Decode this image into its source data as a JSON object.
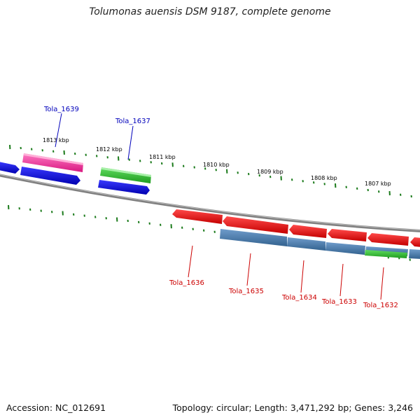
{
  "title": "Tolumonas auensis DSM 9187, complete genome",
  "footer": {
    "accession": "Accession: NC_012691",
    "summary": "Topology: circular; Length: 3,471,292 bp; Genes: 3,246"
  },
  "colors": {
    "backbone": "#808080",
    "tick": "#1a7a1a",
    "forward_label": "#0000bb",
    "reverse_label": "#cc0000",
    "pink": "#ff3aa0",
    "blue": "#1010e0",
    "green": "#30c030",
    "red": "#ee1111",
    "steel": "#4a7fb5"
  },
  "scale_labels": [
    "1813 kbp",
    "1812 kbp",
    "1811 kbp",
    "1810 kbp",
    "1809 kbp",
    "1808 kbp",
    "1807 kbp"
  ],
  "gene_labels": {
    "forward": [
      "Tola_1639",
      "Tola_1637"
    ],
    "reverse": [
      "Tola_1636",
      "Tola_1635",
      "Tola_1634",
      "Tola_1633",
      "Tola_1632"
    ]
  }
}
